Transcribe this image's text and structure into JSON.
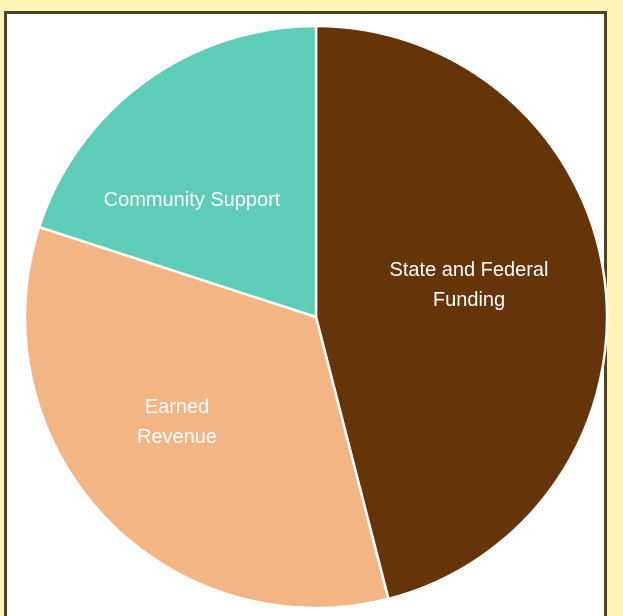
{
  "chart_data": {
    "type": "pie",
    "categories": [
      "State and Federal Funding",
      "Earned Revenue",
      "Community Support"
    ],
    "values": [
      46,
      34,
      20
    ],
    "colors": [
      "#663409",
      "#f4b584",
      "#5ecdb8"
    ],
    "label_lines": [
      [
        "State and Federal",
        "Funding"
      ],
      [
        "Earned",
        "Revenue"
      ],
      [
        "Community Support"
      ]
    ],
    "start_angle_deg": 0,
    "direction": "clockwise",
    "title": "",
    "legend": "none",
    "label_color": "#ffffff",
    "slice_border_color": "#ffffff"
  }
}
